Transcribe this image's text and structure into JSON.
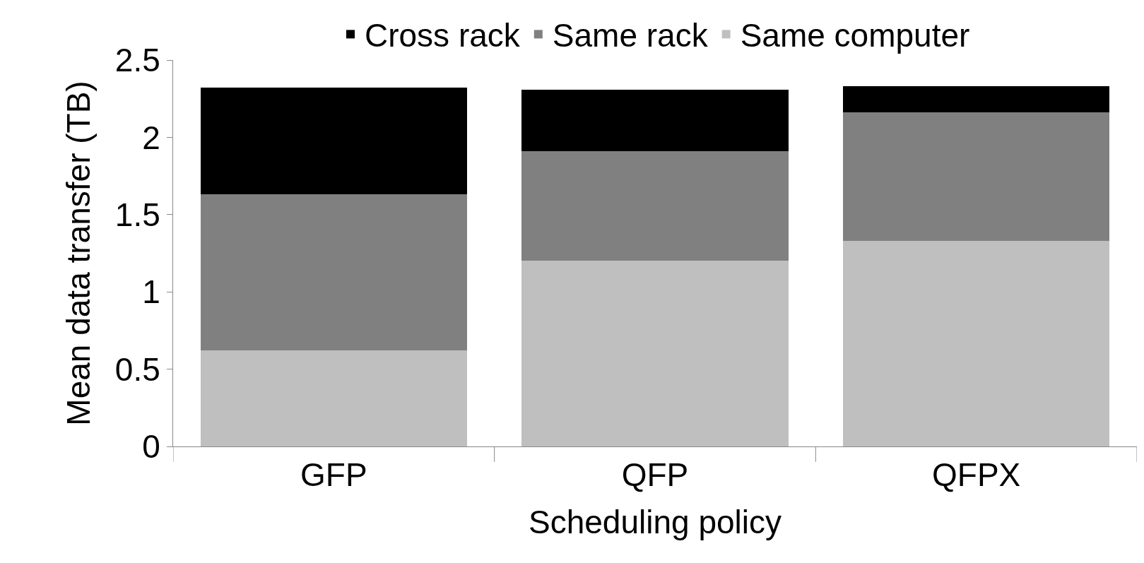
{
  "chart_data": {
    "type": "bar",
    "stacked": true,
    "xlabel": "Scheduling policy",
    "ylabel": "Mean data transfer (TB)",
    "categories": [
      "GFP",
      "QFP",
      "QFPX"
    ],
    "series": [
      {
        "name": "Same computer",
        "color": "#bfbfbf",
        "values": [
          0.62,
          1.2,
          1.33
        ]
      },
      {
        "name": "Same rack",
        "color": "#808080",
        "values": [
          1.01,
          0.71,
          0.83
        ]
      },
      {
        "name": "Cross rack",
        "color": "#000000",
        "values": [
          0.69,
          0.4,
          0.17
        ]
      }
    ],
    "ylim": [
      0,
      2.5
    ],
    "yticks": [
      0,
      0.5,
      1,
      1.5,
      2,
      2.5
    ],
    "grid": false,
    "legend": "top"
  }
}
